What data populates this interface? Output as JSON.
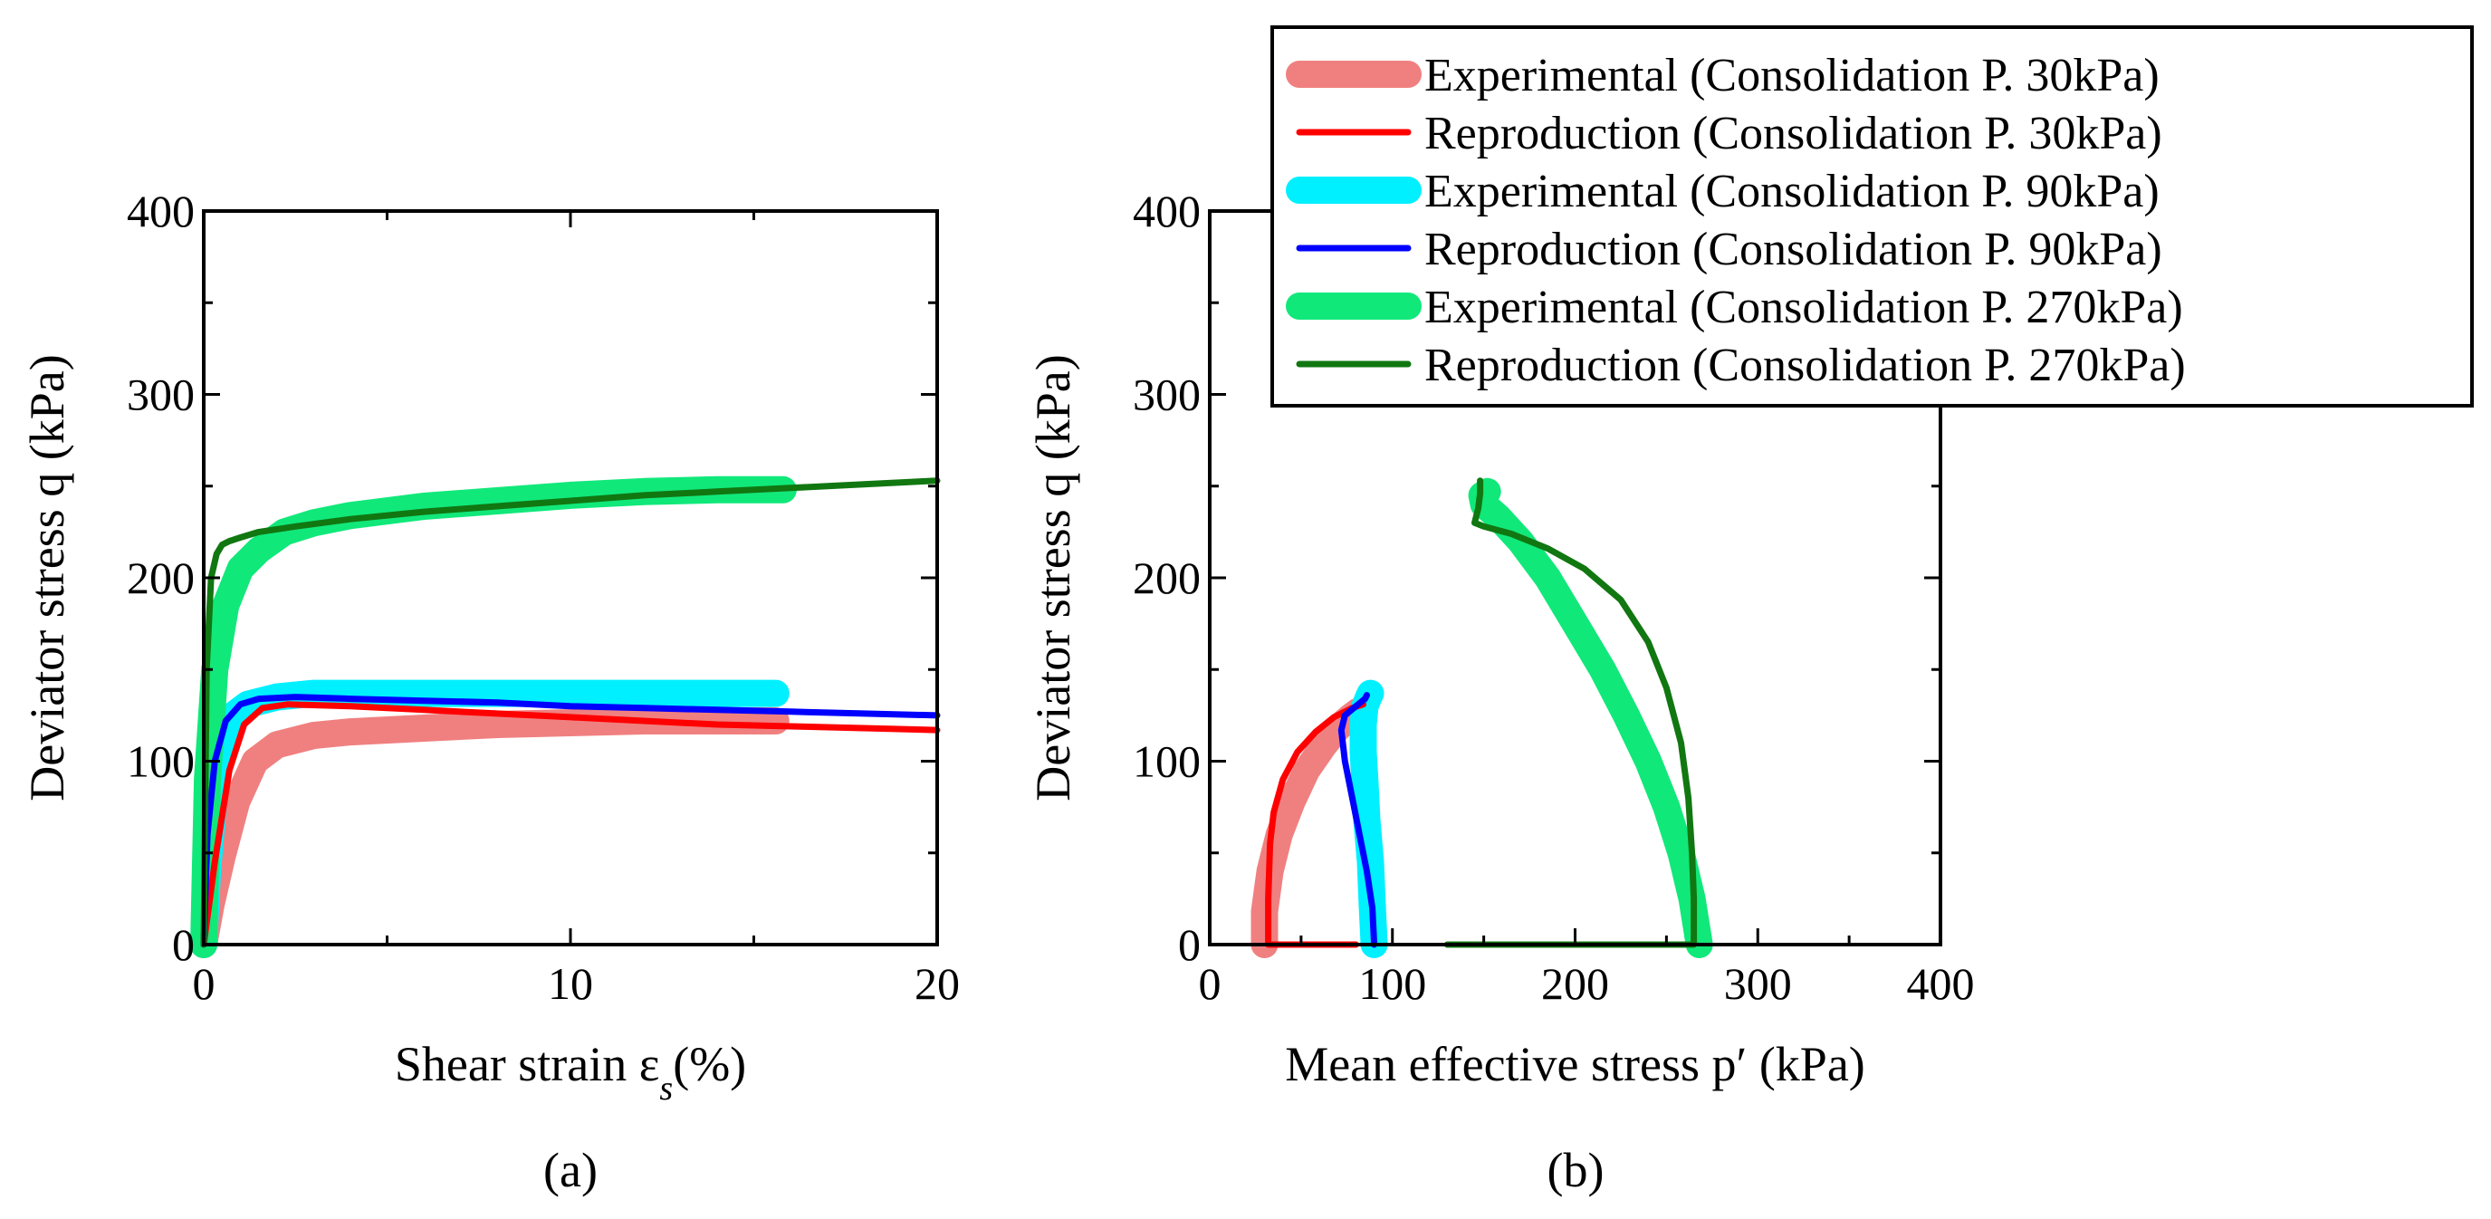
{
  "chart_data": [
    {
      "panel": "a",
      "type": "line",
      "panel_label": "(a)",
      "xlabel": "Shear strain ε",
      "xlabel_sub": "s",
      "xlabel_suffix": "(%)",
      "ylabel": "Deviator stress q (kPa)",
      "xlim": [
        0,
        20
      ],
      "ylim": [
        0,
        400
      ],
      "xticks": [
        0,
        10,
        20
      ],
      "yticks": [
        0,
        100,
        200,
        300,
        400
      ],
      "grid": false,
      "series": [
        {
          "name": "Experimental (Consolidation P. 30kPa)",
          "role": "experimental",
          "x": [
            0,
            0.2,
            0.5,
            0.9,
            1.4,
            2,
            3,
            4,
            6,
            8,
            10,
            12,
            14,
            15.6
          ],
          "y": [
            0,
            22,
            48,
            78,
            100,
            109,
            114,
            116,
            118,
            120,
            121,
            122,
            122,
            122
          ]
        },
        {
          "name": "Reproduction (Consolidation P. 30kPa)",
          "role": "reproduction",
          "x": [
            0,
            0.3,
            0.7,
            1.1,
            1.6,
            2.3,
            4,
            6,
            8,
            10,
            12,
            14,
            16,
            18,
            20
          ],
          "y": [
            0,
            45,
            95,
            120,
            129,
            131,
            130,
            128,
            126,
            124,
            122,
            120,
            119,
            118,
            117
          ]
        },
        {
          "name": "Experimental (Consolidation P. 90kPa)",
          "role": "experimental",
          "x": [
            0,
            0.1,
            0.3,
            0.5,
            0.8,
            1.2,
            2,
            3,
            5,
            8,
            11,
            14,
            15.6
          ],
          "y": [
            0,
            40,
            85,
            110,
            125,
            131,
            135,
            137,
            137,
            137,
            137,
            137,
            137
          ]
        },
        {
          "name": "Reproduction (Consolidation P. 90kPa)",
          "role": "reproduction",
          "x": [
            0,
            0.1,
            0.3,
            0.6,
            1.0,
            1.5,
            2.5,
            4,
            6,
            8,
            10,
            12,
            14,
            16,
            18,
            20
          ],
          "y": [
            0,
            60,
            100,
            122,
            131,
            134,
            135,
            134,
            133,
            132,
            130,
            129,
            128,
            127,
            126,
            125
          ]
        },
        {
          "name": "Experimental (Consolidation P. 270kPa)",
          "role": "experimental",
          "x": [
            0,
            0.1,
            0.3,
            0.6,
            1.0,
            1.5,
            2.2,
            3,
            4,
            6,
            8,
            10,
            12,
            14,
            15.8
          ],
          "y": [
            0,
            90,
            150,
            185,
            205,
            215,
            225,
            230,
            234,
            239,
            242,
            245,
            247,
            248,
            248
          ]
        },
        {
          "name": "Reproduction (Consolidation P. 270kPa)",
          "role": "reproduction",
          "x": [
            0,
            0.08,
            0.2,
            0.35,
            0.5,
            0.7,
            1.0,
            1.5,
            2.5,
            4,
            6,
            8,
            10,
            12,
            14,
            16,
            18,
            20
          ],
          "y": [
            0,
            150,
            200,
            213,
            218,
            220,
            222,
            225,
            228,
            232,
            236,
            239,
            242,
            245,
            247,
            249,
            251,
            253
          ]
        }
      ]
    },
    {
      "panel": "b",
      "type": "line",
      "panel_label": "(b)",
      "xlabel": "Mean effective stress p′ (kPa)",
      "ylabel": "Deviator stress q (kPa)",
      "xlim": [
        0,
        400
      ],
      "ylim": [
        0,
        400
      ],
      "xticks": [
        0,
        100,
        200,
        300,
        400
      ],
      "yticks": [
        0,
        100,
        200,
        300,
        400
      ],
      "grid": false,
      "series": [
        {
          "name": "Experimental (Consolidation P. 30kPa)",
          "role": "experimental",
          "x": [
            30,
            30,
            33,
            38,
            45,
            53,
            62,
            70,
            77,
            81
          ],
          "y": [
            0,
            18,
            40,
            60,
            78,
            95,
            108,
            118,
            124,
            127
          ]
        },
        {
          "name": "Reproduction (Consolidation P. 30kPa)",
          "role": "reproduction",
          "x": [
            80,
            32,
            32,
            33,
            35,
            40,
            48,
            58,
            68,
            78,
            84
          ],
          "y": [
            0,
            0,
            25,
            55,
            72,
            90,
            105,
            116,
            124,
            129,
            131
          ]
        },
        {
          "name": "Experimental (Consolidation P. 90kPa)",
          "role": "experimental",
          "x": [
            90,
            89,
            88,
            86,
            85,
            84,
            84,
            85,
            87,
            88
          ],
          "y": [
            0,
            20,
            45,
            68,
            88,
            105,
            120,
            130,
            135,
            137
          ]
        },
        {
          "name": "Reproduction (Consolidation P. 90kPa)",
          "role": "reproduction",
          "x": [
            90,
            89,
            86,
            82,
            78,
            74,
            72,
            74,
            80,
            85,
            86
          ],
          "y": [
            0,
            20,
            40,
            60,
            80,
            100,
            117,
            125,
            130,
            134,
            136
          ]
        },
        {
          "name": "Experimental (Consolidation P. 270kPa)",
          "role": "experimental",
          "x": [
            268,
            264,
            258,
            250,
            240,
            228,
            215,
            200,
            185,
            170,
            158,
            150,
            149,
            152
          ],
          "y": [
            0,
            25,
            50,
            75,
            100,
            125,
            150,
            175,
            200,
            220,
            233,
            240,
            245,
            247
          ]
        },
        {
          "name": "Reproduction (Consolidation P. 270kPa)",
          "role": "reproduction",
          "x": [
            130,
            265,
            265,
            264,
            262,
            258,
            250,
            240,
            225,
            205,
            185,
            165,
            150,
            145,
            147,
            148,
            148
          ],
          "y": [
            0,
            0,
            25,
            50,
            80,
            110,
            140,
            165,
            188,
            205,
            216,
            224,
            228,
            230,
            238,
            246,
            253
          ]
        }
      ]
    }
  ],
  "legend": {
    "placement": "top-right",
    "entries": [
      {
        "label": "Experimental (Consolidation P. 30kPa)",
        "color": "#f08080",
        "style": "thick"
      },
      {
        "label": "Reproduction (Consolidation P. 30kPa)",
        "color": "#ff0000",
        "style": "thin"
      },
      {
        "label": "Experimental (Consolidation P. 90kPa)",
        "color": "#00f0ff",
        "style": "thick"
      },
      {
        "label": "Reproduction (Consolidation P. 90kPa)",
        "color": "#0000ff",
        "style": "thin"
      },
      {
        "label": "Experimental (Consolidation P. 270kPa)",
        "color": "#11e87a",
        "style": "thick"
      },
      {
        "label": "Reproduction (Consolidation P. 270kPa)",
        "color": "#117711",
        "style": "thin"
      }
    ]
  }
}
